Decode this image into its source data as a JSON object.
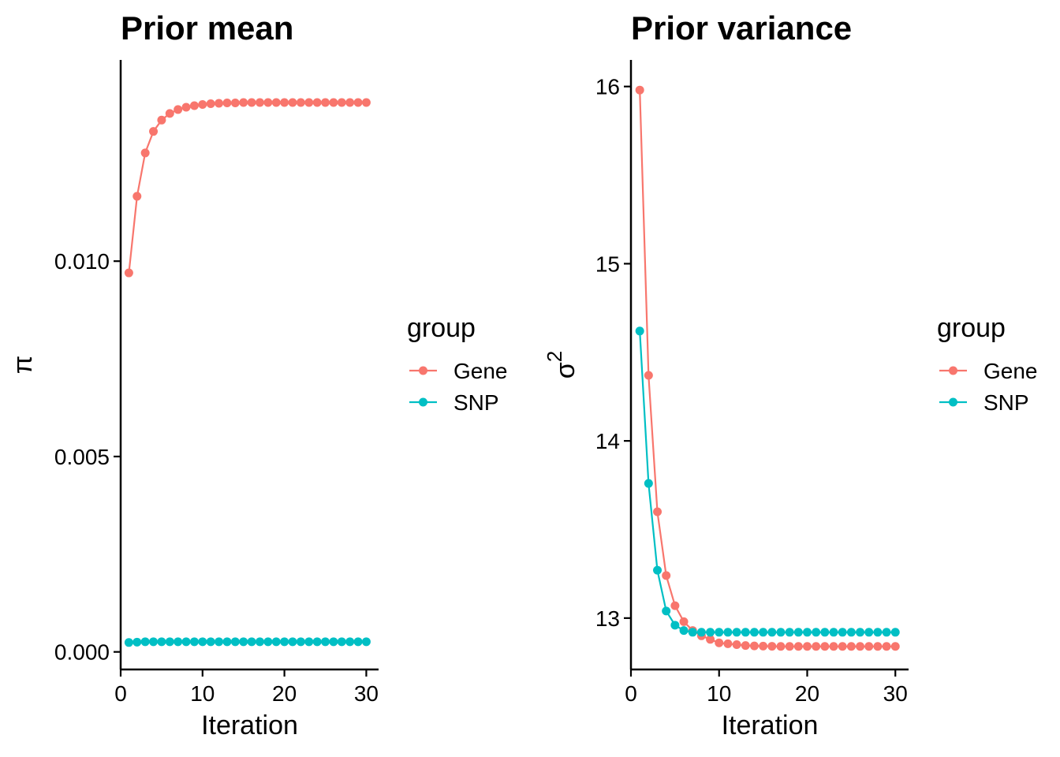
{
  "colors": {
    "gene": "#F8766D",
    "snp": "#00BFC4",
    "axis": "#000000",
    "background": "#FFFFFF"
  },
  "chart_data": [
    {
      "type": "line",
      "title": "Prior mean",
      "xlabel": "Iteration",
      "ylabel": "π",
      "xlim": [
        0,
        31.5
      ],
      "ylim": [
        -0.00045,
        0.01515
      ],
      "xticks": [
        0,
        10,
        20,
        30
      ],
      "xtick_labels": [
        "0",
        "10",
        "20",
        "30"
      ],
      "yticks": [
        0.0,
        0.005,
        0.01
      ],
      "ytick_labels": [
        "0.000",
        "0.005",
        "0.010"
      ],
      "x": [
        1,
        2,
        3,
        4,
        5,
        6,
        7,
        8,
        9,
        10,
        11,
        12,
        13,
        14,
        15,
        16,
        17,
        18,
        19,
        20,
        21,
        22,
        23,
        24,
        25,
        26,
        27,
        28,
        29,
        30
      ],
      "series": [
        {
          "name": "Gene",
          "color_key": "gene",
          "values": [
            0.0097,
            0.01166,
            0.01277,
            0.01332,
            0.01361,
            0.01378,
            0.01388,
            0.01394,
            0.01398,
            0.01401,
            0.01403,
            0.01404,
            0.01405,
            0.01405,
            0.01406,
            0.01406,
            0.01406,
            0.01406,
            0.01406,
            0.01406,
            0.01406,
            0.01406,
            0.01406,
            0.01406,
            0.01406,
            0.01406,
            0.01406,
            0.01406,
            0.01406,
            0.01406
          ]
        },
        {
          "name": "SNP",
          "color_key": "snp",
          "values": [
            0.00024,
            0.00025,
            0.00026,
            0.00026,
            0.00026,
            0.00026,
            0.00026,
            0.00026,
            0.00026,
            0.00026,
            0.00026,
            0.00026,
            0.00026,
            0.00026,
            0.00026,
            0.00026,
            0.00026,
            0.00026,
            0.00026,
            0.00026,
            0.00026,
            0.00026,
            0.00026,
            0.00026,
            0.00026,
            0.00026,
            0.00026,
            0.00026,
            0.00026,
            0.00026
          ]
        }
      ],
      "legend": {
        "title": "group",
        "entries": [
          "Gene",
          "SNP"
        ],
        "position": "right"
      }
    },
    {
      "type": "line",
      "title": "Prior variance",
      "xlabel": "Iteration",
      "ylabel": "σ",
      "ylabel_superscript": "2",
      "xlim": [
        0,
        31.5
      ],
      "ylim": [
        12.71,
        16.15
      ],
      "xticks": [
        0,
        10,
        20,
        30
      ],
      "xtick_labels": [
        "0",
        "10",
        "20",
        "30"
      ],
      "yticks": [
        13,
        14,
        15,
        16
      ],
      "ytick_labels": [
        "13",
        "14",
        "15",
        "16"
      ],
      "x": [
        1,
        2,
        3,
        4,
        5,
        6,
        7,
        8,
        9,
        10,
        11,
        12,
        13,
        14,
        15,
        16,
        17,
        18,
        19,
        20,
        21,
        22,
        23,
        24,
        25,
        26,
        27,
        28,
        29,
        30
      ],
      "series": [
        {
          "name": "Gene",
          "color_key": "gene",
          "values": [
            15.98,
            14.37,
            13.6,
            13.24,
            13.07,
            12.98,
            12.93,
            12.9,
            12.88,
            12.86,
            12.855,
            12.85,
            12.845,
            12.843,
            12.842,
            12.841,
            12.84,
            12.84,
            12.84,
            12.84,
            12.84,
            12.84,
            12.84,
            12.84,
            12.84,
            12.84,
            12.84,
            12.84,
            12.84,
            12.84
          ]
        },
        {
          "name": "SNP",
          "color_key": "snp",
          "values": [
            14.62,
            13.76,
            13.27,
            13.04,
            12.96,
            12.93,
            12.92,
            12.92,
            12.92,
            12.92,
            12.92,
            12.92,
            12.92,
            12.92,
            12.92,
            12.92,
            12.92,
            12.92,
            12.92,
            12.92,
            12.92,
            12.92,
            12.92,
            12.92,
            12.92,
            12.92,
            12.92,
            12.92,
            12.92,
            12.92
          ]
        }
      ],
      "legend": {
        "title": "group",
        "entries": [
          "Gene",
          "SNP"
        ],
        "position": "right"
      }
    }
  ]
}
